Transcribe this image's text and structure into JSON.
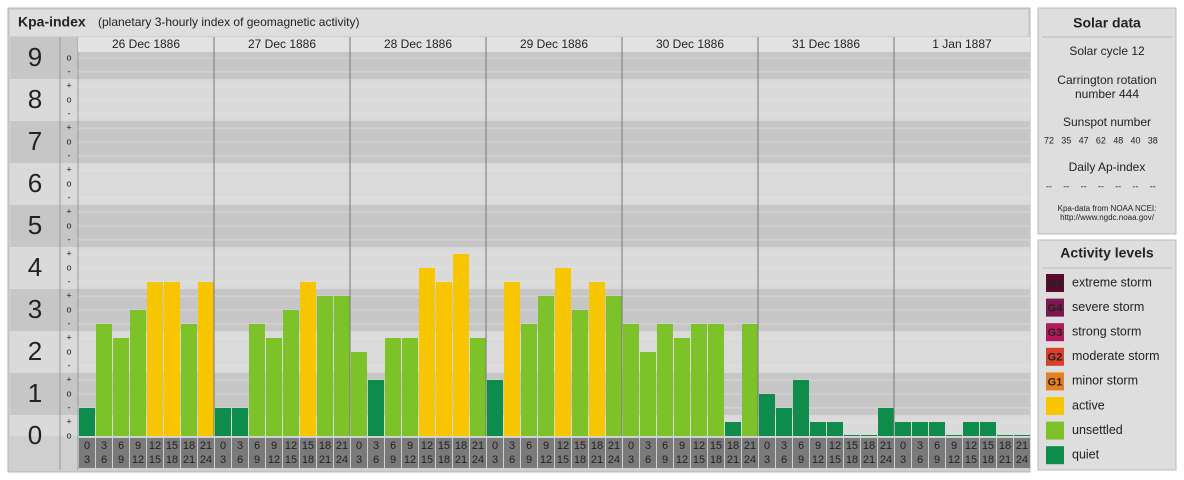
{
  "header": {
    "title": "Kpa-index",
    "subtitle": "(planetary 3-hourly index of geomagnetic activity)"
  },
  "chart_data": {
    "type": "bar",
    "ylim": [
      0,
      9.5
    ],
    "yticks": [
      0,
      1,
      2,
      3,
      4,
      5,
      6,
      7,
      8,
      9
    ],
    "minor_ticks": [
      {
        "value": 0,
        "label": "o"
      },
      {
        "value": 0.333,
        "label": "+"
      },
      {
        "value": 0.667,
        "label": "-"
      },
      {
        "value": 1,
        "label": "o"
      },
      {
        "value": 1.333,
        "label": "+"
      },
      {
        "value": 1.667,
        "label": "-"
      },
      {
        "value": 2,
        "label": "o"
      },
      {
        "value": 2.333,
        "label": "+"
      },
      {
        "value": 2.667,
        "label": "-"
      },
      {
        "value": 3,
        "label": "o"
      },
      {
        "value": 3.333,
        "label": "+"
      },
      {
        "value": 3.667,
        "label": "-"
      },
      {
        "value": 4,
        "label": "o"
      },
      {
        "value": 4.333,
        "label": "+"
      },
      {
        "value": 4.667,
        "label": "-"
      },
      {
        "value": 5,
        "label": "o"
      },
      {
        "value": 5.333,
        "label": "+"
      },
      {
        "value": 5.667,
        "label": "-"
      },
      {
        "value": 6,
        "label": "o"
      },
      {
        "value": 6.333,
        "label": "+"
      },
      {
        "value": 6.667,
        "label": "-"
      },
      {
        "value": 7,
        "label": "o"
      },
      {
        "value": 7.333,
        "label": "+"
      },
      {
        "value": 7.667,
        "label": "-"
      },
      {
        "value": 8,
        "label": "o"
      },
      {
        "value": 8.333,
        "label": "+"
      },
      {
        "value": 8.667,
        "label": "-"
      },
      {
        "value": 9,
        "label": "o"
      }
    ],
    "time_slots": [
      [
        0,
        3
      ],
      [
        3,
        6
      ],
      [
        6,
        9
      ],
      [
        9,
        12
      ],
      [
        12,
        15
      ],
      [
        15,
        18
      ],
      [
        18,
        21
      ],
      [
        21,
        24
      ]
    ],
    "days": [
      {
        "date": "26 Dec 1886",
        "values": [
          0.667,
          2.667,
          2.333,
          3,
          3.667,
          3.667,
          2.667,
          3.667
        ],
        "colors": [
          "#0d8c4b",
          "#7cc228",
          "#7cc228",
          "#7cc228",
          "#f7c600",
          "#f7c600",
          "#7cc228",
          "#f7c600"
        ]
      },
      {
        "date": "27 Dec 1886",
        "values": [
          0.667,
          0.667,
          2.667,
          2.333,
          3,
          3.667,
          3.333,
          3.333
        ],
        "colors": [
          "#0d8c4b",
          "#0d8c4b",
          "#7cc228",
          "#7cc228",
          "#7cc228",
          "#f7c600",
          "#7cc228",
          "#7cc228"
        ]
      },
      {
        "date": "28 Dec 1886",
        "values": [
          2,
          1.333,
          2.333,
          2.333,
          4,
          3.667,
          4.333,
          2.333
        ],
        "colors": [
          "#7cc228",
          "#0d8c4b",
          "#7cc228",
          "#7cc228",
          "#f7c600",
          "#f7c600",
          "#f7c600",
          "#7cc228"
        ]
      },
      {
        "date": "29 Dec 1886",
        "values": [
          1.333,
          3.667,
          2.667,
          3.333,
          4,
          3,
          3.667,
          3.333
        ],
        "colors": [
          "#0d8c4b",
          "#f7c600",
          "#7cc228",
          "#7cc228",
          "#f7c600",
          "#7cc228",
          "#f7c600",
          "#7cc228"
        ]
      },
      {
        "date": "30 Dec 1886",
        "values": [
          2.667,
          2,
          2.667,
          2.333,
          2.667,
          2.667,
          0.333,
          2.667
        ],
        "colors": [
          "#7cc228",
          "#7cc228",
          "#7cc228",
          "#7cc228",
          "#7cc228",
          "#7cc228",
          "#0d8c4b",
          "#7cc228"
        ]
      },
      {
        "date": "31 Dec 1886",
        "values": [
          1,
          0.667,
          1.333,
          0.333,
          0.333,
          0,
          0,
          0.667
        ],
        "colors": [
          "#0d8c4b",
          "#0d8c4b",
          "#0d8c4b",
          "#0d8c4b",
          "#0d8c4b",
          "#0d8c4b",
          "#0d8c4b",
          "#0d8c4b"
        ]
      },
      {
        "date": "1 Jan 1887",
        "values": [
          0.333,
          0.333,
          0.333,
          0,
          0.333,
          0.333,
          0,
          0
        ],
        "colors": [
          "#0d8c4b",
          "#0d8c4b",
          "#0d8c4b",
          "#0d8c4b",
          "#0d8c4b",
          "#0d8c4b",
          "#0d8c4b",
          "#0d8c4b"
        ]
      }
    ]
  },
  "solar_data": {
    "title": "Solar data",
    "solar_cycle": "Solar cycle 12",
    "carrington": [
      "Carrington rotation",
      "number 444"
    ],
    "sunspot_title": "Sunspot number",
    "sunspots": [
      72,
      35,
      47,
      62,
      48,
      40,
      38
    ],
    "ap_title": "Daily Ap-index",
    "ap_values": [
      "--",
      "--",
      "--",
      "--",
      "--",
      "--",
      "--"
    ],
    "source": [
      "Kpa-data from NOAA NCEI:",
      "http://www.ngdc.noaa.gov/"
    ]
  },
  "activity_levels": {
    "title": "Activity levels",
    "items": [
      {
        "badge": "G5",
        "label": "extreme storm",
        "color": "#5a0a2c"
      },
      {
        "badge": "G4",
        "label": "severe storm",
        "color": "#7b1850"
      },
      {
        "badge": "G3",
        "label": "strong storm",
        "color": "#b3185c"
      },
      {
        "badge": "G2",
        "label": "moderate storm",
        "color": "#d8402c"
      },
      {
        "badge": "G1",
        "label": "minor storm",
        "color": "#e5821f"
      },
      {
        "label": "active",
        "color": "#f7c600"
      },
      {
        "label": "unsettled",
        "color": "#7cc228"
      },
      {
        "label": "quiet",
        "color": "#0d8c4b"
      }
    ]
  }
}
